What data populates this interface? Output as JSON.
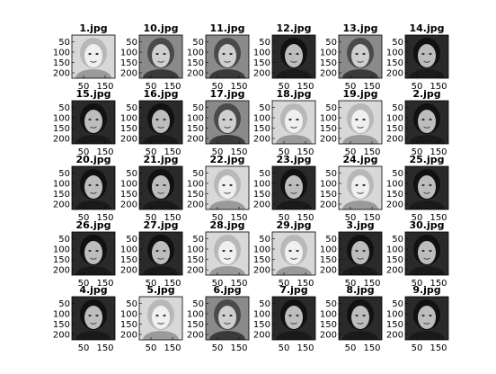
{
  "chart_data": {
    "type": "image-grid",
    "rows": 5,
    "cols": 6,
    "yticks": [
      "50",
      "100",
      "150",
      "200"
    ],
    "xticks": [
      "50",
      "150"
    ],
    "panels": [
      {
        "title": "1.jpg",
        "tone": "light"
      },
      {
        "title": "10.jpg",
        "tone": "mid"
      },
      {
        "title": "11.jpg",
        "tone": "mid"
      },
      {
        "title": "12.jpg",
        "tone": "dark"
      },
      {
        "title": "13.jpg",
        "tone": "mid"
      },
      {
        "title": "14.jpg",
        "tone": "dark"
      },
      {
        "title": "15.jpg",
        "tone": "dark"
      },
      {
        "title": "16.jpg",
        "tone": "dark"
      },
      {
        "title": "17.jpg",
        "tone": "mid"
      },
      {
        "title": "18.jpg",
        "tone": "light"
      },
      {
        "title": "19.jpg",
        "tone": "light"
      },
      {
        "title": "2.jpg",
        "tone": "dark"
      },
      {
        "title": "20.jpg",
        "tone": "dark"
      },
      {
        "title": "21.jpg",
        "tone": "dark"
      },
      {
        "title": "22.jpg",
        "tone": "light"
      },
      {
        "title": "23.jpg",
        "tone": "dark"
      },
      {
        "title": "24.jpg",
        "tone": "light"
      },
      {
        "title": "25.jpg",
        "tone": "dark"
      },
      {
        "title": "26.jpg",
        "tone": "dark"
      },
      {
        "title": "27.jpg",
        "tone": "dark"
      },
      {
        "title": "28.jpg",
        "tone": "light"
      },
      {
        "title": "29.jpg",
        "tone": "light"
      },
      {
        "title": "3.jpg",
        "tone": "dark"
      },
      {
        "title": "30.jpg",
        "tone": "dark"
      },
      {
        "title": "4.jpg",
        "tone": "dark"
      },
      {
        "title": "5.jpg",
        "tone": "light"
      },
      {
        "title": "6.jpg",
        "tone": "mid"
      },
      {
        "title": "7.jpg",
        "tone": "dark"
      },
      {
        "title": "8.jpg",
        "tone": "dark"
      },
      {
        "title": "9.jpg",
        "tone": "dark"
      }
    ]
  }
}
